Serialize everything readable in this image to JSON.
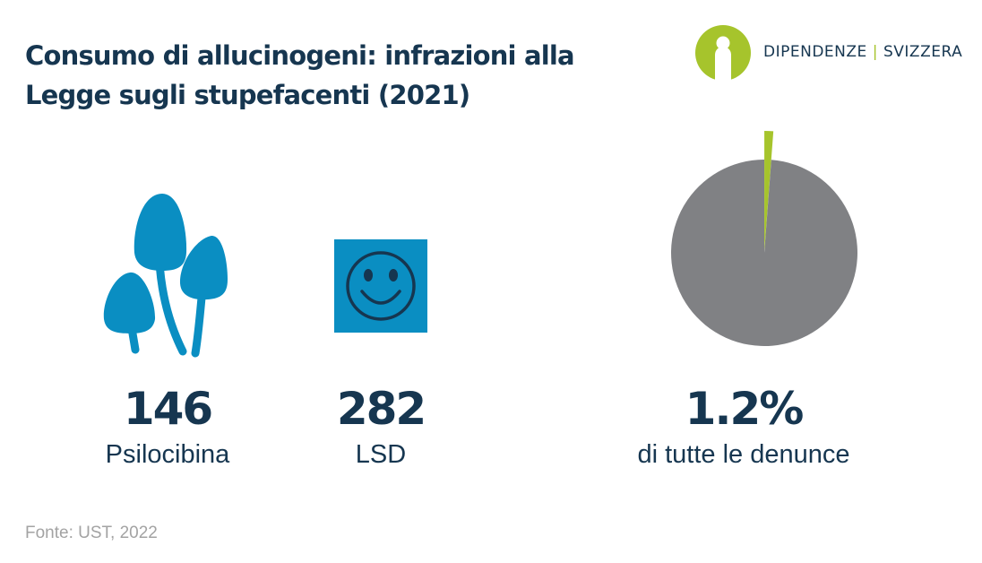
{
  "title": {
    "line1": "Consumo di allucinogeni: infrazioni alla",
    "line2": "Legge sugli stupefacenti (2021)"
  },
  "logo": {
    "name_left": "DIPENDENZE",
    "separator": "|",
    "name_right": "SVIZZERA",
    "colors": {
      "green": "#a6c42c",
      "navy": "#163650"
    }
  },
  "stats": [
    {
      "value": "146",
      "label": "Psilocibina",
      "icon": "mushroom-icon"
    },
    {
      "value": "282",
      "label": "LSD",
      "icon": "smiley-icon"
    },
    {
      "value": "1.2%",
      "label": "di tutte le denunce",
      "icon": "pie-chart"
    }
  ],
  "chart_data": [
    {
      "type": "pie",
      "slices": [
        {
          "name": "",
          "value": 1.2,
          "color": "#a6c42c"
        },
        {
          "name": "",
          "value": 98.8,
          "color": "#808184"
        }
      ],
      "exploded_slice_index": 0
    }
  ],
  "colors": {
    "navy": "#163650",
    "icon_blue": "#0a8ec2",
    "pie_gray": "#808184",
    "accent_green": "#a6c42c",
    "source_gray": "#a3a3a3"
  },
  "source": "Fonte: UST, 2022"
}
